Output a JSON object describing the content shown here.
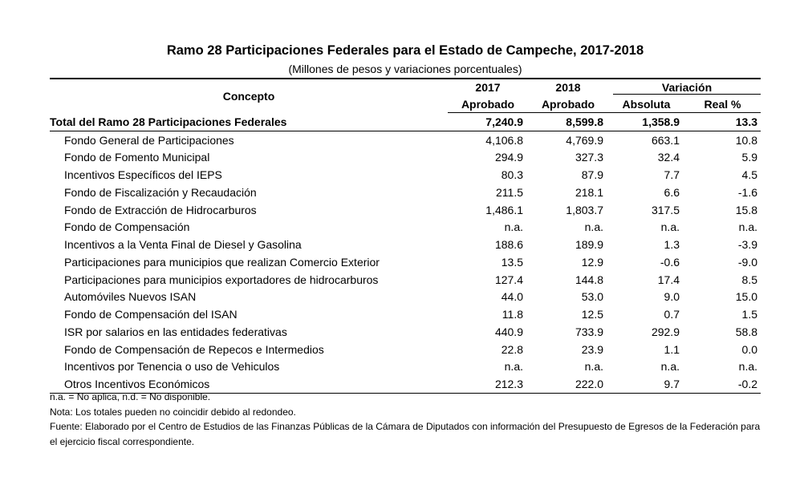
{
  "title": "Ramo 28 Participaciones Federales para el Estado de Campeche, 2017-2018",
  "subtitle": "(Millones de pesos y variaciones porcentuales)",
  "header": {
    "concept": "Concepto",
    "y2017": "2017",
    "y2018": "2018",
    "aprobado1": "Aprobado",
    "aprobado2": "Aprobado",
    "variacion": "Variación",
    "absoluta": "Absoluta",
    "real": "Real %"
  },
  "rows": [
    {
      "concept": "Total del Ramo 28 Participaciones Federales",
      "v2017": "7,240.9",
      "v2018": "8,599.8",
      "abs": "1,358.9",
      "real": "13.3"
    },
    {
      "concept": "Fondo General de Participaciones",
      "v2017": "4,106.8",
      "v2018": "4,769.9",
      "abs": "663.1",
      "real": "10.8"
    },
    {
      "concept": "Fondo de Fomento Municipal",
      "v2017": "294.9",
      "v2018": "327.3",
      "abs": "32.4",
      "real": "5.9"
    },
    {
      "concept": "Incentivos Específicos del IEPS",
      "v2017": "80.3",
      "v2018": "87.9",
      "abs": "7.7",
      "real": "4.5"
    },
    {
      "concept": "Fondo de Fiscalización y Recaudación",
      "v2017": "211.5",
      "v2018": "218.1",
      "abs": "6.6",
      "real": "-1.6"
    },
    {
      "concept": "Fondo de Extracción de Hidrocarburos",
      "v2017": "1,486.1",
      "v2018": "1,803.7",
      "abs": "317.5",
      "real": "15.8"
    },
    {
      "concept": "Fondo de Compensación",
      "v2017": "n.a.",
      "v2018": "n.a.",
      "abs": "n.a.",
      "real": "n.a."
    },
    {
      "concept": "Incentivos a la Venta Final de Diesel y Gasolina",
      "v2017": "188.6",
      "v2018": "189.9",
      "abs": "1.3",
      "real": "-3.9"
    },
    {
      "concept": "Participaciones para municipios que realizan Comercio Exterior",
      "v2017": "13.5",
      "v2018": "12.9",
      "abs": "-0.6",
      "real": "-9.0"
    },
    {
      "concept": "Participaciones para municipios exportadores de hidrocarburos",
      "v2017": "127.4",
      "v2018": "144.8",
      "abs": "17.4",
      "real": "8.5"
    },
    {
      "concept": "Automóviles Nuevos ISAN",
      "v2017": "44.0",
      "v2018": "53.0",
      "abs": "9.0",
      "real": "15.0"
    },
    {
      "concept": "Fondo de Compensación del ISAN",
      "v2017": "11.8",
      "v2018": "12.5",
      "abs": "0.7",
      "real": "1.5"
    },
    {
      "concept": "ISR por salarios en las entidades federativas",
      "v2017": "440.9",
      "v2018": "733.9",
      "abs": "292.9",
      "real": "58.8"
    },
    {
      "concept": "Fondo de Compensación de Repecos e Intermedios",
      "v2017": "22.8",
      "v2018": "23.9",
      "abs": "1.1",
      "real": "0.0"
    },
    {
      "concept": "Incentivos por Tenencia o uso de Vehiculos",
      "v2017": "n.a.",
      "v2018": "n.a.",
      "abs": "n.a.",
      "real": "n.a."
    },
    {
      "concept": "Otros Incentivos Económicos",
      "v2017": "212.3",
      "v2018": "222.0",
      "abs": "9.7",
      "real": "-0.2"
    }
  ],
  "notes": {
    "abbr": "n.a. = No aplica, n.d. = No disponible.",
    "nota": "Nota: Los totales pueden no coincidir debido al redondeo.",
    "fuente": "Fuente: Elaborado por el Centro de Estudios de las Finanzas Públicas de la Cámara de Diputados con información del Presupuesto de Egresos de la Federación para el ejercicio fiscal correspondiente."
  }
}
